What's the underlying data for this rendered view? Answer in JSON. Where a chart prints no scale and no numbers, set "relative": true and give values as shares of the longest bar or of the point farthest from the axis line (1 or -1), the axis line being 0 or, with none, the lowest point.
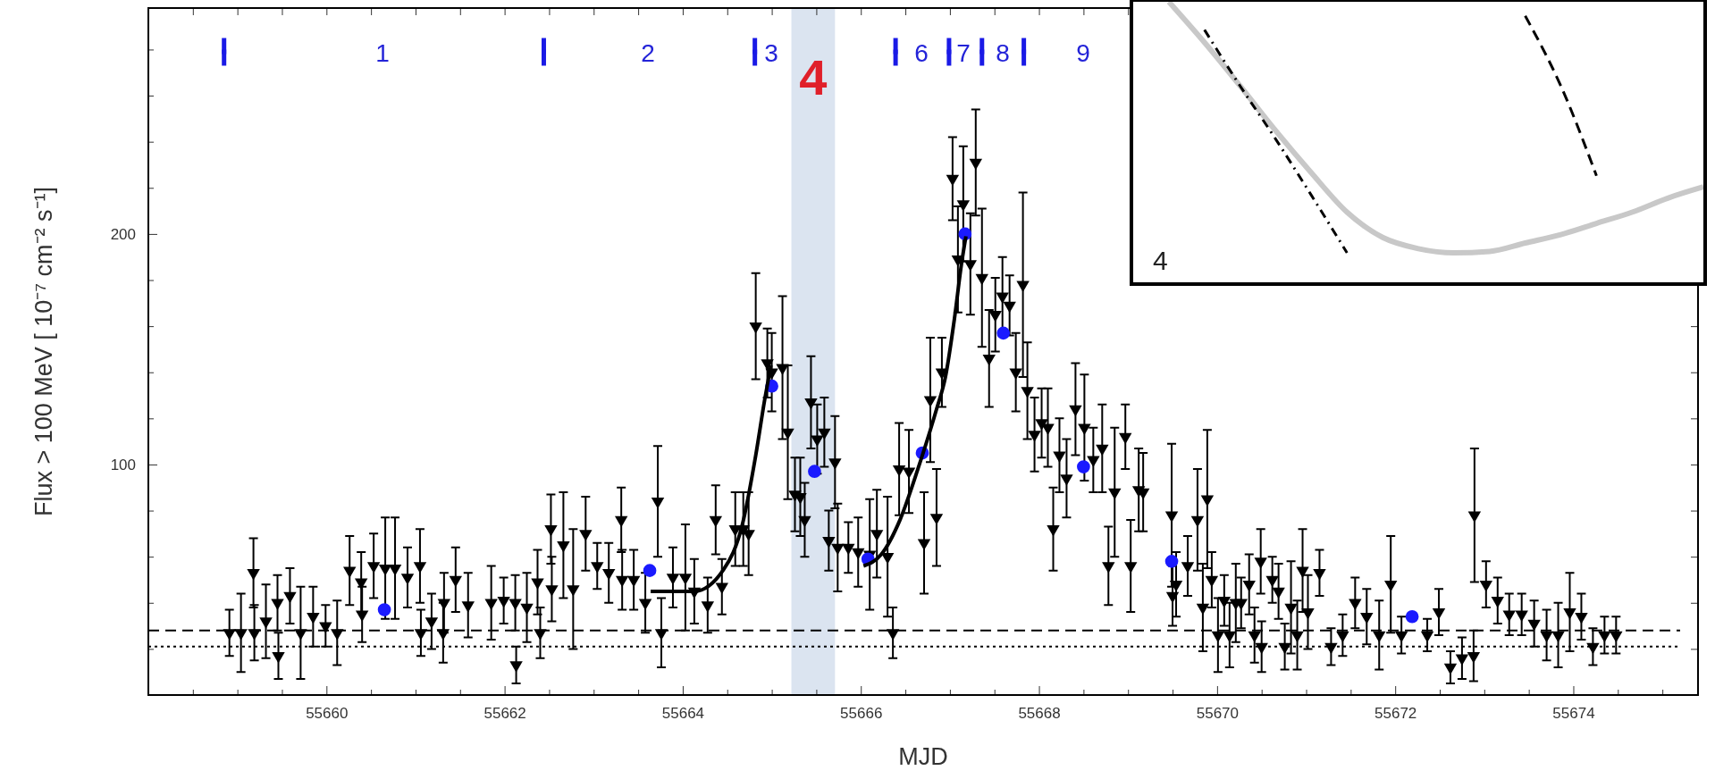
{
  "chart_data": [
    {
      "type": "scatter",
      "xlabel": "MJD",
      "ylabel": "Flux > 100 MeV [ 10⁻⁷ cm⁻² s⁻¹]",
      "xlim": [
        55658,
        55675.4
      ],
      "ylim": [
        0,
        298
      ],
      "xticks": [
        {
          "value": 55658.5,
          "label": null
        },
        {
          "value": 55659,
          "label": null
        },
        {
          "value": 55659.5,
          "label": null
        },
        55660,
        {
          "value": 55660.5,
          "label": null
        },
        {
          "value": 55661,
          "label": null
        },
        {
          "value": 55661.5,
          "label": null
        },
        55662,
        {
          "value": 55662.5,
          "label": null
        },
        {
          "value": 55663,
          "label": null
        },
        {
          "value": 55663.5,
          "label": null
        },
        55664,
        {
          "value": 55664.5,
          "label": null
        },
        {
          "value": 55665,
          "label": null
        },
        {
          "value": 55665.5,
          "label": null
        },
        55666,
        {
          "value": 55666.5,
          "label": null
        },
        {
          "value": 55667,
          "label": null
        },
        {
          "value": 55667.5,
          "label": null
        },
        55668,
        {
          "value": 55668.5,
          "label": null
        },
        {
          "value": 55669,
          "label": null
        },
        {
          "value": 55669.5,
          "label": null
        },
        55670,
        {
          "value": 55670.5,
          "label": null
        },
        {
          "value": 55671,
          "label": null
        },
        {
          "value": 55671.5,
          "label": null
        },
        55672,
        {
          "value": 55672.5,
          "label": null
        },
        {
          "value": 55673,
          "label": null
        },
        {
          "value": 55673.5,
          "label": null
        },
        55674,
        {
          "value": 55674.5,
          "label": null
        },
        {
          "value": 55675,
          "label": null
        }
      ],
      "yticks": [
        {
          "value": 20,
          "label": null
        },
        {
          "value": 40,
          "label": null
        },
        {
          "value": 60,
          "label": null
        },
        {
          "value": 80,
          "label": null
        },
        100,
        {
          "value": 120,
          "label": null
        },
        {
          "value": 140,
          "label": null
        },
        {
          "value": 160,
          "label": null
        },
        {
          "value": 180,
          "label": null
        },
        200,
        {
          "value": 220,
          "label": null
        },
        {
          "value": 240,
          "label": null
        },
        {
          "value": 260,
          "label": null
        },
        {
          "value": 280,
          "label": null
        }
      ],
      "grid": false,
      "series": [
        {
          "type": "scatter",
          "marker": "triangle",
          "color": "#000000",
          "x": [
            55658.91,
            55659.04,
            55659.18,
            55659.19,
            55659.32,
            55659.45,
            55659.46,
            55659.59,
            55659.71,
            55659.85,
            55659.99,
            55660.12,
            55660.26,
            55660.39,
            55660.4,
            55660.53,
            55660.66,
            55660.77,
            55660.91,
            55661.05,
            55661.06,
            55661.18,
            55661.31,
            55661.32,
            55661.45,
            55661.59,
            55661.85,
            55661.99,
            55662.12,
            55662.13,
            55662.25,
            55662.37,
            55662.4,
            55662.52,
            55662.53,
            55662.66,
            55662.77,
            55662.91,
            55663.04,
            55663.17,
            55663.31,
            55663.32,
            55663.45,
            55663.58,
            55663.72,
            55663.76,
            55663.89,
            55664.03,
            55664.13,
            55664.28,
            55664.37,
            55664.44,
            55664.59,
            55664.68,
            55664.74,
            55664.82,
            55664.95,
            55665.0,
            55665.12,
            55665.18,
            55665.26,
            55665.32,
            55665.37,
            55665.44,
            55665.51,
            55665.59,
            55665.64,
            55665.71,
            55665.74,
            55665.86,
            55665.97,
            55666.1,
            55666.18,
            55666.3,
            55666.36,
            55666.43,
            55666.54,
            55666.71,
            55666.78,
            55666.85,
            55666.91,
            55667.03,
            55667.09,
            55667.15,
            55667.23,
            55667.29,
            55667.36,
            55667.44,
            55667.51,
            55667.59,
            55667.67,
            55667.74,
            55667.82,
            55667.87,
            55667.95,
            55668.03,
            55668.1,
            55668.16,
            55668.23,
            55668.31,
            55668.41,
            55668.51,
            55668.61,
            55668.71,
            55668.78,
            55668.85,
            55668.97,
            55669.03,
            55669.12,
            55669.17,
            55669.49,
            55669.5,
            55669.54,
            55669.67,
            55669.78,
            55669.84,
            55669.89,
            55669.94,
            55670.01,
            55670.08,
            55670.14,
            55670.21,
            55670.27,
            55670.36,
            55670.42,
            55670.49,
            55670.5,
            55670.62,
            55670.69,
            55670.76,
            55670.83,
            55670.9,
            55670.96,
            55671.02,
            55671.15,
            55671.28,
            55671.41,
            55671.55,
            55671.68,
            55671.82,
            55671.95,
            55672.07,
            55672.36,
            55672.49,
            55672.62,
            55672.75,
            55672.88,
            55672.89,
            55673.02,
            55673.15,
            55673.28,
            55673.42,
            55673.56,
            55673.7,
            55673.83,
            55673.96,
            55674.09,
            55674.22,
            55674.35,
            55674.48
          ],
          "values": [
            27,
            27,
            53,
            27,
            32,
            40,
            17,
            43,
            27,
            34,
            30,
            27,
            54,
            49,
            35,
            56,
            55,
            55,
            51,
            56,
            27,
            32,
            27,
            40,
            50,
            39,
            40,
            41,
            40,
            13,
            38,
            49,
            27,
            72,
            46,
            65,
            46,
            70,
            56,
            53,
            76,
            50,
            50,
            40,
            84,
            27,
            51,
            51,
            45,
            39,
            76,
            47,
            72,
            72,
            70,
            160,
            144,
            140,
            142,
            114,
            87,
            86,
            76,
            127,
            111,
            114,
            67,
            101,
            64,
            64,
            62,
            61,
            70,
            60,
            27,
            98,
            97,
            66,
            128,
            77,
            140,
            224,
            189,
            213,
            187,
            231,
            181,
            146,
            165,
            173,
            169,
            140,
            178,
            132,
            113,
            118,
            116,
            72,
            104,
            94,
            124,
            116,
            102,
            107,
            56,
            88,
            112,
            56,
            89,
            88,
            78,
            43,
            48,
            56,
            76,
            38,
            85,
            50,
            26,
            41,
            26,
            40,
            40,
            48,
            26,
            58,
            21,
            50,
            45,
            21,
            38,
            26,
            54,
            36,
            53,
            21,
            26,
            40,
            34,
            26,
            48,
            26,
            26,
            36,
            12,
            16,
            17,
            78,
            48,
            41,
            35,
            35,
            31,
            26,
            26,
            36,
            34,
            21,
            26,
            26
          ],
          "errors": [
            10,
            17,
            15,
            12,
            16,
            12,
            10,
            12,
            20,
            13,
            9,
            14,
            15,
            13,
            12,
            14,
            22,
            22,
            13,
            16,
            10,
            12,
            13,
            13,
            14,
            14,
            16,
            10,
            12,
            8,
            15,
            14,
            11,
            15,
            14,
            23,
            26,
            16,
            10,
            13,
            14,
            13,
            13,
            13,
            24,
            15,
            13,
            23,
            14,
            12,
            15,
            12,
            16,
            16,
            18,
            23,
            15,
            17,
            31,
            29,
            16,
            17,
            16,
            20,
            15,
            15,
            13,
            20,
            19,
            11,
            15,
            24,
            19,
            26,
            11,
            20,
            18,
            22,
            27,
            21,
            15,
            18,
            23,
            25,
            22,
            23,
            30,
            21,
            16,
            17,
            13,
            17,
            40,
            21,
            16,
            15,
            17,
            18,
            16,
            17,
            20,
            23,
            14,
            19,
            17,
            28,
            14,
            20,
            18,
            17,
            31,
            13,
            14,
            13,
            22,
            19,
            30,
            12,
            16,
            11,
            14,
            17,
            11,
            13,
            12,
            14,
            11,
            10,
            12,
            10,
            20,
            15,
            18,
            16,
            10,
            8,
            9,
            11,
            12,
            15,
            21,
            8,
            7,
            10,
            7,
            9,
            11,
            29,
            10,
            10,
            9,
            9,
            10,
            11,
            14,
            17,
            10,
            8,
            8,
            8
          ]
        },
        {
          "type": "scatter",
          "marker": "circle",
          "color": "#1a1aff",
          "x": [
            55660.65,
            55663.63,
            55665.0,
            55665.48,
            55666.08,
            55666.69,
            55667.17,
            55667.6,
            55668.5,
            55669.49,
            55672.19
          ],
          "values": [
            37,
            54,
            134,
            97,
            59,
            105,
            200,
            157,
            99,
            58,
            34
          ]
        },
        {
          "type": "line",
          "marker": "none",
          "line_style": "solid",
          "color": "#000000",
          "x": [
            55663.64,
            55664.13,
            55664.46,
            55664.67,
            55664.82,
            55664.92,
            55664.99
          ],
          "values": [
            45,
            45,
            54.5,
            74,
            104,
            128,
            143
          ]
        },
        {
          "type": "line",
          "marker": "none",
          "line_style": "solid",
          "color": "#000000",
          "x": [
            55666.03,
            55666.23,
            55666.44,
            55666.64,
            55666.85,
            55666.95,
            55667.05,
            55667.13,
            55667.18
          ],
          "values": [
            56,
            61,
            76,
            98,
            124,
            138,
            163,
            187,
            199
          ]
        },
        {
          "type": "scatter",
          "marker": "square",
          "color": "#1a1ae6",
          "x": [
            55658.85,
            55662.44,
            55664.81,
            55666.39,
            55666.99,
            55667.36,
            55667.83
          ],
          "values": [
            279,
            279,
            279,
            279,
            279,
            279,
            279
          ],
          "errors": [
            6,
            6,
            6,
            6,
            6,
            6,
            6
          ]
        }
      ],
      "ref_lines": [
        {
          "axis": "y",
          "value": 28,
          "label": null,
          "color": "#000000",
          "line_style": "dashed"
        },
        {
          "axis": "y",
          "value": 21,
          "label": null,
          "color": "#000000",
          "line_style": "dotted"
        }
      ],
      "bands": [
        {
          "axis": "x",
          "from": 55665.22,
          "to": 55665.71,
          "label": "4",
          "color": "#dbe4f0"
        }
      ],
      "annotations": [
        "1",
        "2",
        "3",
        "6",
        "7",
        "8",
        "9"
      ]
    },
    {
      "type": "line",
      "relative": true,
      "tick_labels": false,
      "categories": [
        null,
        null,
        null,
        null,
        null,
        null,
        null,
        null,
        null,
        null,
        null,
        null,
        null,
        null,
        null,
        null,
        null
      ],
      "series": [
        {
          "color": "#c8c8c8",
          "line_style": "solid",
          "values": [
            null,
            1,
            0.855,
            0.7,
            0.54,
            0.39,
            0.25,
            0.16,
            0.12,
            0.105,
            0.11,
            0.14,
            0.17,
            0.21,
            0.25,
            0.3,
            0.34
          ]
        },
        {
          "color": "#000000",
          "line_style": "dashdot",
          "values": [
            null,
            null,
            0.9,
            0.7,
            0.51,
            0.31,
            0.105,
            null,
            null,
            null,
            null,
            null,
            null,
            null,
            null,
            null,
            null
          ]
        },
        {
          "color": "#000000",
          "line_style": "dashed",
          "values": [
            null,
            null,
            null,
            null,
            null,
            null,
            null,
            null,
            null,
            null,
            null,
            0.95,
            0.7,
            0.38,
            null,
            null,
            null
          ]
        }
      ],
      "annotations": [
        "4"
      ]
    }
  ]
}
